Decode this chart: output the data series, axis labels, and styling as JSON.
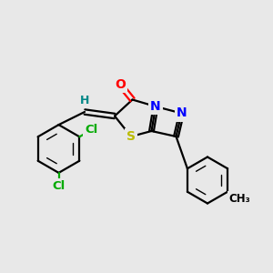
{
  "background_color": "#e8e8e8",
  "bond_color": "#000000",
  "atom_colors": {
    "N": "#0000ff",
    "S": "#bbbb00",
    "O": "#ff0000",
    "Cl": "#00aa00",
    "H": "#008888",
    "C": "#000000"
  },
  "figsize": [
    3.0,
    3.0
  ],
  "dpi": 100
}
